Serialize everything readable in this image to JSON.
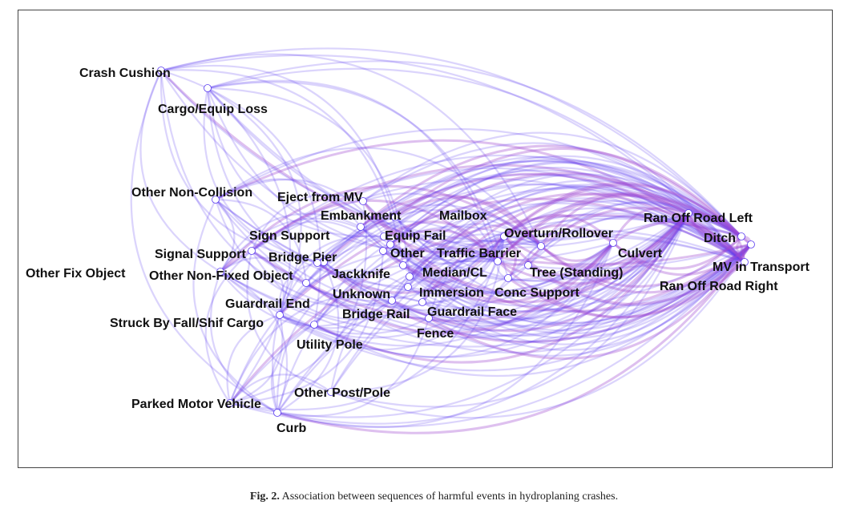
{
  "figure": {
    "edge_color": "#5a3cf0",
    "edge_color_alt": "#a04ad0",
    "node_color": "#ffffff"
  },
  "caption": {
    "label": "Fig. 2.",
    "text": "Association between sequences of harmful events in hydroplaning crashes."
  },
  "network": {
    "nodes": [
      {
        "id": "crash-cushion",
        "label": "Crash Cushion"
      },
      {
        "id": "cargo-equip-loss",
        "label": "Cargo/Equip Loss"
      },
      {
        "id": "other-non-collision",
        "label": "Other Non-Collision"
      },
      {
        "id": "eject-from-mv",
        "label": "Eject from MV"
      },
      {
        "id": "embankment",
        "label": "Embankment"
      },
      {
        "id": "mailbox",
        "label": "Mailbox"
      },
      {
        "id": "sign-support",
        "label": "Sign Support"
      },
      {
        "id": "equip-fail",
        "label": "Equip Fail"
      },
      {
        "id": "overturn-rollover",
        "label": "Overturn/Rollover"
      },
      {
        "id": "ran-off-road-left",
        "label": "Ran Off Road Left"
      },
      {
        "id": "ditch",
        "label": "Ditch"
      },
      {
        "id": "signal-support",
        "label": "Signal Support"
      },
      {
        "id": "bridge-pier",
        "label": "Bridge Pier"
      },
      {
        "id": "other",
        "label": "Other"
      },
      {
        "id": "traffic-barrier",
        "label": "Traffic Barrier"
      },
      {
        "id": "culvert",
        "label": "Culvert"
      },
      {
        "id": "mv-in-transport",
        "label": "MV in Transport"
      },
      {
        "id": "other-fix-object",
        "label": "Other Fix Object"
      },
      {
        "id": "other-non-fixed-object",
        "label": "Other Non-Fixed Object"
      },
      {
        "id": "jackknife",
        "label": "Jackknife"
      },
      {
        "id": "median-cl",
        "label": "Median/CL"
      },
      {
        "id": "tree-standing",
        "label": "Tree (Standing)"
      },
      {
        "id": "ran-off-road-right",
        "label": "Ran Off Road Right"
      },
      {
        "id": "unknown",
        "label": "Unknown"
      },
      {
        "id": "immersion",
        "label": "Immersion"
      },
      {
        "id": "conc-support",
        "label": "Conc Support"
      },
      {
        "id": "guardrail-end",
        "label": "Guardrail End"
      },
      {
        "id": "bridge-rail",
        "label": "Bridge Rail"
      },
      {
        "id": "guardrail-face",
        "label": "Guardrail Face"
      },
      {
        "id": "struck-by-fall-shif-cargo",
        "label": "Struck By Fall/Shif Cargo"
      },
      {
        "id": "fence",
        "label": "Fence"
      },
      {
        "id": "utility-pole",
        "label": "Utility Pole"
      },
      {
        "id": "other-post-pole",
        "label": "Other Post/Pole"
      },
      {
        "id": "parked-motor-vehicle",
        "label": "Parked Motor Vehicle"
      },
      {
        "id": "curb",
        "label": "Curb"
      }
    ]
  }
}
